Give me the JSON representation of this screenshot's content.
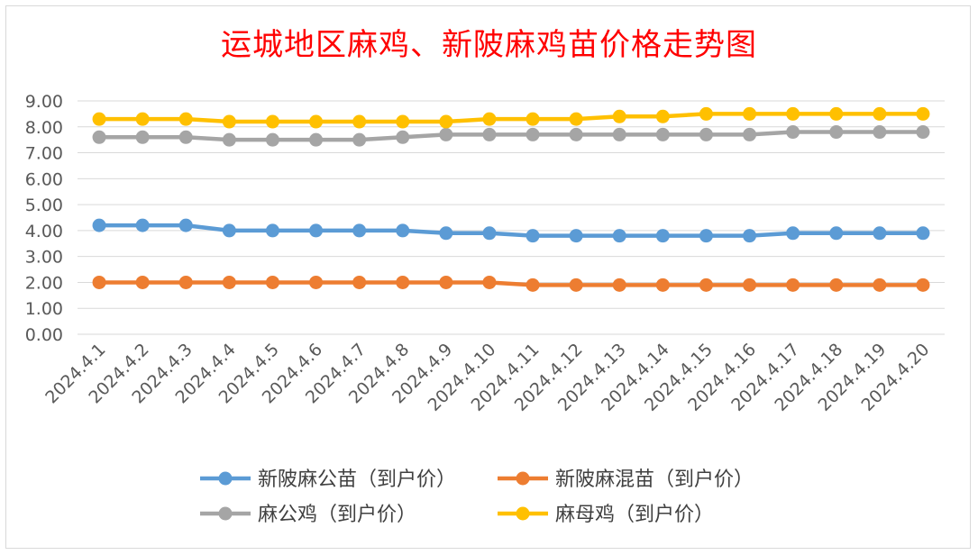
{
  "chart_data": {
    "type": "line",
    "title": "运城地区麻鸡、新陂麻鸡苗价格走势图",
    "xlabel": "",
    "ylabel": "",
    "ylim": [
      0,
      9
    ],
    "yticks": [
      "0.00",
      "1.00",
      "2.00",
      "3.00",
      "4.00",
      "5.00",
      "6.00",
      "7.00",
      "8.00",
      "9.00"
    ],
    "grid": true,
    "legend_position": "bottom",
    "categories": [
      "2024.4.1",
      "2024.4.2",
      "2024.4.3",
      "2024.4.4",
      "2024.4.5",
      "2024.4.6",
      "2024.4.7",
      "2024.4.8",
      "2024.4.9",
      "2024.4.10",
      "2024.4.11",
      "2024.4.12",
      "2024.4.13",
      "2024.4.14",
      "2024.4.15",
      "2024.4.16",
      "2024.4.17",
      "2024.4.18",
      "2024.4.19",
      "2024.4.20"
    ],
    "series": [
      {
        "name": "新陂麻公苗（到户价）",
        "color": "#5b9bd5",
        "values": [
          4.2,
          4.2,
          4.2,
          4.0,
          4.0,
          4.0,
          4.0,
          4.0,
          3.9,
          3.9,
          3.8,
          3.8,
          3.8,
          3.8,
          3.8,
          3.8,
          3.9,
          3.9,
          3.9,
          3.9
        ]
      },
      {
        "name": "新陂麻混苗（到户价）",
        "color": "#ed7d31",
        "values": [
          2.0,
          2.0,
          2.0,
          2.0,
          2.0,
          2.0,
          2.0,
          2.0,
          2.0,
          2.0,
          1.9,
          1.9,
          1.9,
          1.9,
          1.9,
          1.9,
          1.9,
          1.9,
          1.9,
          1.9
        ]
      },
      {
        "name": "麻公鸡（到户价）",
        "color": "#a5a5a5",
        "values": [
          7.6,
          7.6,
          7.6,
          7.5,
          7.5,
          7.5,
          7.5,
          7.6,
          7.7,
          7.7,
          7.7,
          7.7,
          7.7,
          7.7,
          7.7,
          7.7,
          7.8,
          7.8,
          7.8,
          7.8
        ]
      },
      {
        "name": "麻母鸡（到户价）",
        "color": "#ffc000",
        "values": [
          8.3,
          8.3,
          8.3,
          8.2,
          8.2,
          8.2,
          8.2,
          8.2,
          8.2,
          8.3,
          8.3,
          8.3,
          8.4,
          8.4,
          8.5,
          8.5,
          8.5,
          8.5,
          8.5,
          8.5
        ]
      }
    ]
  }
}
